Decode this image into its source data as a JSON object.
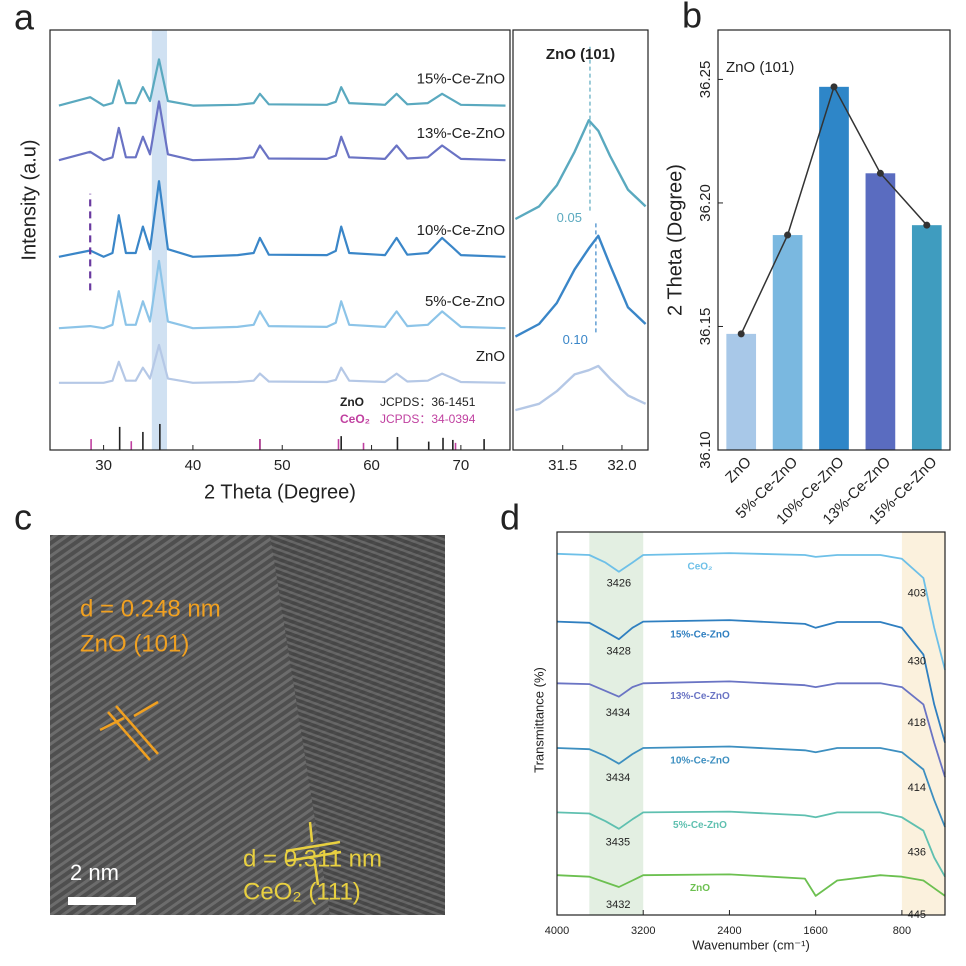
{
  "panel_labels": [
    "a",
    "b",
    "c",
    "d"
  ],
  "image_c": {
    "annotations": [
      "d = 0.248 nm",
      "ZnO (101)",
      "d = 0.311 nm",
      "CeO₂ (111)"
    ],
    "scale_bar": "2 nm"
  },
  "chart_data": [
    {
      "type": "line",
      "y_label": "Intensity (a.u)",
      "x_label": "2 Theta (Degree)",
      "xlim": [
        24,
        75.5
      ],
      "xticks": [
        30,
        40,
        50,
        60,
        70
      ],
      "ylim": [
        0,
        100
      ],
      "highlight": [
        35.4,
        37.1
      ],
      "marker_x": 28.5,
      "marker_y": [
        38,
        61
      ],
      "x": [
        25,
        28.5,
        30,
        31.0,
        31.7,
        32.5,
        33.6,
        34.4,
        35.2,
        36.2,
        37.2,
        40,
        45,
        46.8,
        47.5,
        48.5,
        55,
        56.0,
        56.6,
        57.5,
        61.5,
        62.8,
        64,
        66.3,
        67.9,
        69.1,
        70,
        75
      ],
      "series": [
        {
          "name": "ZnO",
          "color": "#b5c8e6",
          "values": [
            16,
            16,
            16,
            16.5,
            21,
            16.5,
            16.5,
            19.6,
            17,
            25,
            17,
            16,
            16.2,
            16.5,
            18.2,
            16.3,
            16.2,
            16.7,
            19.6,
            16.5,
            16.2,
            18.2,
            16.3,
            16.5,
            18.2,
            17.1,
            16.2,
            16
          ]
        },
        {
          "name": "5%-Ce-ZnO",
          "color": "#8cc4e8",
          "values": [
            29,
            29.5,
            29,
            29.8,
            37.8,
            29.8,
            29.8,
            35.4,
            30.6,
            45,
            30.6,
            29,
            29.3,
            29.8,
            33,
            29.5,
            29.3,
            30.3,
            35.4,
            29.8,
            29.3,
            33,
            29.5,
            29.8,
            33,
            30.9,
            29.3,
            29
          ]
        },
        {
          "name": "10%-Ce-ZnO",
          "color": "#3a86c8",
          "values": [
            46,
            47.5,
            46,
            46.9,
            55.9,
            46.9,
            46.9,
            53.2,
            47.8,
            64,
            47.8,
            46,
            46.4,
            46.9,
            50.5,
            46.5,
            46.4,
            47.4,
            53.2,
            46.9,
            46.4,
            50.5,
            46.5,
            46.9,
            50.5,
            48.2,
            46.4,
            46
          ]
        },
        {
          "name": "13%-Ce-ZnO",
          "color": "#6a73c4",
          "values": [
            69,
            71,
            69,
            69.7,
            76.7,
            69.7,
            69.7,
            74.6,
            70.4,
            83,
            70.4,
            69,
            69.3,
            69.7,
            72.5,
            69.4,
            69.3,
            70.1,
            74.6,
            69.7,
            69.3,
            72.5,
            69.4,
            69.7,
            72.5,
            70.7,
            69.3,
            69
          ]
        },
        {
          "name": "15%-Ce-ZnO",
          "color": "#5aa9bf",
          "values": [
            82,
            84,
            82,
            82.6,
            88,
            82.6,
            82.6,
            86.4,
            83.1,
            93,
            83.1,
            82,
            82.2,
            82.6,
            84.8,
            82.3,
            82.2,
            82.9,
            86.4,
            82.6,
            82.2,
            84.8,
            82.3,
            82.6,
            84.8,
            83.3,
            82.2,
            82
          ]
        }
      ],
      "references": [
        {
          "name": "ZnO",
          "label": "JCPDS：36-1451",
          "color": "#222222",
          "positions": [
            31.8,
            34.4,
            36.3,
            47.5,
            56.6,
            62.9,
            66.4,
            68.0,
            69.1,
            72.6
          ],
          "heights": [
            5.5,
            4.3,
            6.2,
            2.6,
            3.3,
            3.1,
            2,
            2.9,
            2.4,
            2.6
          ]
        },
        {
          "name": "CeO₂",
          "label": "JCPDS：34-0394",
          "color": "#c040a0",
          "positions": [
            28.6,
            33.1,
            47.5,
            56.3,
            59.1,
            69.4
          ],
          "heights": [
            2.6,
            2.1,
            2.6,
            2.6,
            1.7,
            1.7
          ]
        }
      ]
    },
    {
      "type": "line",
      "title": "ZnO (101)",
      "xlim": [
        31.08,
        32.22
      ],
      "xticks": [
        31.5,
        {
          "value": 32.0,
          "label": "32.0"
        }
      ],
      "ylim": [
        0,
        100
      ],
      "x": [
        31.1,
        31.3,
        31.45,
        31.6,
        31.72,
        31.8,
        31.9,
        32.05,
        32.2
      ],
      "series": [
        {
          "color": "#5aa9bf",
          "values": [
            55,
            58,
            63,
            71,
            78.5,
            76,
            70,
            62,
            58
          ]
        },
        {
          "color": "#3a86c8",
          "values": [
            27,
            30,
            35,
            43,
            48,
            51,
            44,
            34,
            30
          ]
        },
        {
          "color": "#b5c8e6",
          "values": [
            9.5,
            11,
            14,
            18,
            19,
            20,
            17,
            13,
            11
          ]
        }
      ],
      "annotations": [
        {
          "text": "0.05",
          "x": 31.73,
          "y": [
            57,
            96
          ],
          "color": "#5aa9bf"
        },
        {
          "text": "0.10",
          "x": 31.78,
          "y": [
            28,
            54
          ],
          "color": "#3a86c8"
        }
      ]
    },
    {
      "type": "bar",
      "title": "ZnO (101)",
      "y_label": "2 Theta (Degree)",
      "categories": [
        "ZnO",
        "5%-Ce-ZnO",
        "10%-Ce-ZnO",
        "13%-Ce-ZnO",
        "15%-Ce-ZnO"
      ],
      "values": [
        36.147,
        36.187,
        36.247,
        36.212,
        36.191
      ],
      "colors": [
        "#a8c8e8",
        "#7ab8e0",
        "#2e86c8",
        "#5a6cc0",
        "#3f9cbf"
      ],
      "line_color": "#333333",
      "ylim": [
        36.1,
        36.27
      ],
      "yticks": [
        {
          "value": 36.1,
          "label": "36.10"
        },
        36.15,
        {
          "value": 36.2,
          "label": "36.20"
        },
        36.25
      ]
    },
    {
      "type": "line",
      "x_label": "Wavenumber (cm⁻¹)",
      "y_label": "Transmittance (%)",
      "xlim": [
        4000,
        400
      ],
      "xticks": [
        4000,
        3200,
        2400,
        1600,
        800
      ],
      "ylim": [
        0,
        100
      ],
      "bands": [
        [
          3700,
          3200
        ],
        [
          800,
          400
        ]
      ],
      "x": [
        4000,
        3700,
        3550,
        3426,
        3300,
        3200,
        2400,
        1700,
        1600,
        1400,
        1000,
        800,
        600,
        500,
        400
      ],
      "series": [
        {
          "name": "CeO₂",
          "color": "#6ec0e8",
          "dip": 3426,
          "edge": 403,
          "values": [
            94.3,
            94,
            92,
            89.6,
            92,
            94,
            94.5,
            94,
            93.5,
            94,
            94,
            93,
            88,
            75,
            64
          ]
        },
        {
          "name": "15%-Ce-ZnO",
          "color": "#2f7fc0",
          "dip": 3428,
          "edge": 430,
          "values": [
            76.6,
            76.3,
            74,
            72,
            75,
            76.6,
            77,
            76,
            75,
            76.5,
            76.5,
            75,
            68,
            55,
            45
          ]
        },
        {
          "name": "13%-Ce-ZnO",
          "color": "#6a74c4",
          "dip": 3434,
          "edge": 418,
          "values": [
            60.5,
            60.3,
            58.5,
            57,
            59.5,
            60.5,
            61,
            60,
            59.5,
            60.5,
            60.5,
            59.5,
            55,
            45,
            36
          ]
        },
        {
          "name": "10%-Ce-ZnO",
          "color": "#3d8fc0",
          "dip": 3434,
          "edge": 414,
          "values": [
            43.6,
            43.3,
            41.5,
            39.5,
            42,
            43.6,
            44,
            43,
            42.5,
            43.6,
            43.6,
            42.5,
            38,
            30,
            23
          ]
        },
        {
          "name": "5%-Ce-ZnO",
          "color": "#5fc0b0",
          "dip": 3435,
          "edge": 436,
          "values": [
            26.8,
            26.5,
            24.5,
            22.5,
            25,
            26.8,
            27,
            26,
            25.5,
            26.8,
            26.8,
            25.5,
            22,
            15,
            10
          ]
        },
        {
          "name": "ZnO",
          "color": "#6cc050",
          "dip": 3432,
          "edge": 445,
          "values": [
            10.4,
            10,
            8.5,
            7.3,
            9,
            10.4,
            10.6,
            9.5,
            5,
            9,
            10.4,
            10,
            9,
            7,
            5
          ]
        }
      ]
    }
  ]
}
